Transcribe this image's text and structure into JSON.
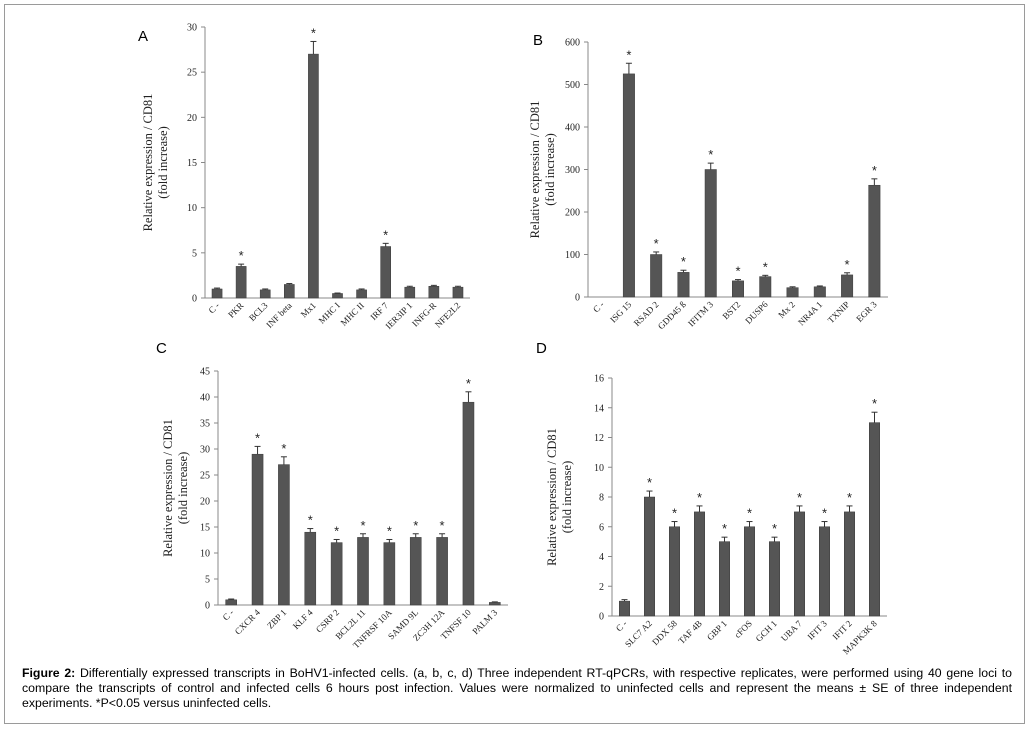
{
  "caption": {
    "label": "Figure 2:",
    "text": " Differentially expressed transcripts in BoHV1-infected cells. (a, b, c, d) Three independent RT-qPCRs, with respective replicates, were performed using 40 gene loci to compare the transcripts of control and infected cells 6 hours post infection. Values were normalized to uninfected cells and represent the means ± SE of three independent experiments. *P<0.05 versus uninfected cells."
  },
  "colors": {
    "bar": "#555555",
    "axis": "#888888",
    "text": "#222222"
  },
  "panels": [
    {
      "letter": "A"
    },
    {
      "letter": "B"
    },
    {
      "letter": "C"
    },
    {
      "letter": "D"
    }
  ],
  "chart_data": [
    {
      "type": "bar",
      "panel": "A",
      "ylabel": "Relative expression / CD81",
      "ylabel2": "(fold increase)",
      "ylim": [
        0,
        30
      ],
      "yticks": [
        0,
        5,
        10,
        15,
        20,
        25,
        30
      ],
      "categories": [
        "C -",
        "PKR",
        "BCL3",
        "INF beta",
        "Mx1",
        "MHC I",
        "MHC II",
        "IRF 7",
        "IER3IP 1",
        "INFG-R",
        "NFE2L2"
      ],
      "values": [
        1.0,
        3.5,
        0.9,
        1.5,
        27.0,
        0.5,
        0.9,
        5.7,
        1.2,
        1.3,
        1.2
      ],
      "errors": [
        0.1,
        0.25,
        0.1,
        0.1,
        1.4,
        0.05,
        0.1,
        0.35,
        0.1,
        0.1,
        0.1
      ],
      "significant": [
        false,
        true,
        false,
        false,
        true,
        false,
        false,
        true,
        false,
        false,
        false
      ],
      "grid": false
    },
    {
      "type": "bar",
      "panel": "B",
      "ylabel": "Relative expression / CD81",
      "ylabel2": "(fold increase)",
      "ylim": [
        0,
        600
      ],
      "yticks": [
        0,
        100,
        200,
        300,
        400,
        500,
        600
      ],
      "categories": [
        "C -",
        "ISG 15",
        "RSAD 2",
        "GDD45 ß",
        "IFITM 3",
        "BST2",
        "DUSP6",
        "Mx 2",
        "NR4A 1",
        "TXNIP",
        "EGR 3"
      ],
      "values": [
        0,
        525,
        100,
        58,
        300,
        38,
        48,
        22,
        24,
        52,
        263
      ],
      "errors": [
        0,
        25,
        6,
        5,
        15,
        3,
        3,
        2,
        2,
        5,
        15
      ],
      "significant": [
        false,
        true,
        true,
        true,
        true,
        true,
        true,
        false,
        false,
        true,
        true
      ],
      "grid": false
    },
    {
      "type": "bar",
      "panel": "C",
      "ylabel": "Relative expression / CD81",
      "ylabel2": "(fold increase)",
      "ylim": [
        0,
        45
      ],
      "yticks": [
        0,
        5,
        10,
        15,
        20,
        25,
        30,
        35,
        40,
        45
      ],
      "categories": [
        "C -",
        "CXCR 4",
        "ZBP 1",
        "KLF 4",
        "CSRP 2",
        "BCL2L 11",
        "TNFRSF 10A",
        "SAMD 9L",
        "ZC3H 12A",
        "TNFSF 10",
        "PALM 3"
      ],
      "values": [
        1.0,
        29,
        27,
        14,
        12,
        13,
        12,
        13,
        13,
        39,
        0.5
      ],
      "errors": [
        0.15,
        1.5,
        1.5,
        0.7,
        0.6,
        0.7,
        0.6,
        0.7,
        0.7,
        2.0,
        0.1
      ],
      "significant": [
        false,
        true,
        true,
        true,
        true,
        true,
        true,
        true,
        true,
        true,
        false
      ],
      "grid": false
    },
    {
      "type": "bar",
      "panel": "D",
      "ylabel": "Relative expression / CD81",
      "ylabel2": "(fold increase)",
      "ylim": [
        0,
        16
      ],
      "yticks": [
        0,
        2,
        4,
        6,
        8,
        10,
        12,
        14,
        16
      ],
      "categories": [
        "C -",
        "SLC7 A2",
        "DDX 58",
        "TAF 4B",
        "GBP 1",
        "cFOS",
        "GCH 1",
        "UBA 7",
        "IFIT 3",
        "IFIT 2",
        "MAPK3K 8"
      ],
      "values": [
        1.0,
        8.0,
        6.0,
        7.0,
        5.0,
        6.0,
        5.0,
        7.0,
        6.0,
        7.0,
        13.0
      ],
      "errors": [
        0.1,
        0.4,
        0.35,
        0.4,
        0.3,
        0.35,
        0.3,
        0.4,
        0.35,
        0.4,
        0.7
      ],
      "significant": [
        false,
        true,
        true,
        true,
        true,
        true,
        true,
        true,
        true,
        true,
        true
      ],
      "grid": false
    }
  ]
}
